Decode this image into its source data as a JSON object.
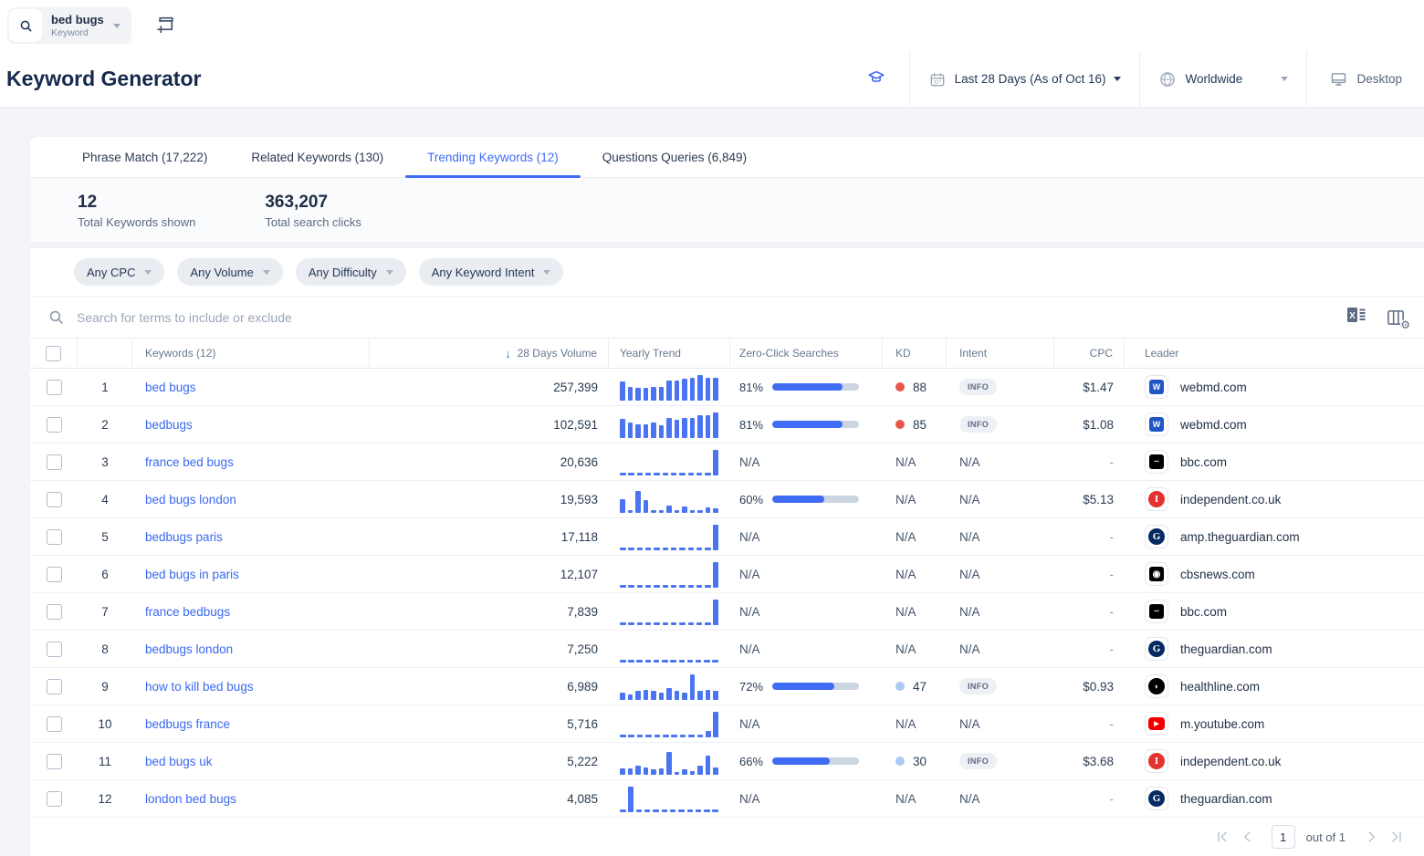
{
  "topbar": {
    "seed_keyword": "bed bugs",
    "seed_type": "Keyword"
  },
  "header": {
    "title": "Keyword Generator",
    "date_range": "Last 28 Days (As of Oct 16)",
    "location": "Worldwide",
    "device": "Desktop"
  },
  "tabs": [
    {
      "label": "Phrase Match (17,222)",
      "active": false
    },
    {
      "label": "Related Keywords (130)",
      "active": false
    },
    {
      "label": "Trending Keywords (12)",
      "active": true
    },
    {
      "label": "Questions Queries (6,849)",
      "active": false
    }
  ],
  "stats": {
    "keywords": {
      "value": "12",
      "label": "Total Keywords shown"
    },
    "clicks": {
      "value": "363,207",
      "label": "Total search clicks"
    }
  },
  "filters": [
    "Any CPC",
    "Any Volume",
    "Any Difficulty",
    "Any Keyword Intent"
  ],
  "search": {
    "placeholder": "Search for terms to include or exclude"
  },
  "table": {
    "headers": {
      "keywords": "Keywords (12)",
      "volume": "28 Days Volume",
      "trend": "Yearly Trend",
      "zero_click": "Zero-Click Searches",
      "kd": "KD",
      "intent": "Intent",
      "cpc": "CPC",
      "leader": "Leader"
    },
    "rows": [
      {
        "index": "1",
        "keyword": "bed bugs",
        "volume": "257,399",
        "trend": [
          0.75,
          0.55,
          0.5,
          0.5,
          0.55,
          0.55,
          0.8,
          0.8,
          0.85,
          0.9,
          1.0,
          0.9,
          0.9
        ],
        "zero_click": "81%",
        "zero_click_pct": 81,
        "kd": "88",
        "kd_level": "hard",
        "intent": "INFO",
        "cpc": "$1.47",
        "leader": {
          "domain": "webmd.com",
          "icon": "webmd"
        }
      },
      {
        "index": "2",
        "keyword": "bedbugs",
        "volume": "102,591",
        "trend": [
          0.75,
          0.6,
          0.55,
          0.55,
          0.6,
          0.5,
          0.8,
          0.7,
          0.8,
          0.8,
          0.9,
          0.9,
          1.0
        ],
        "zero_click": "81%",
        "zero_click_pct": 81,
        "kd": "85",
        "kd_level": "hard",
        "intent": "INFO",
        "cpc": "$1.08",
        "leader": {
          "domain": "webmd.com",
          "icon": "webmd"
        }
      },
      {
        "index": "3",
        "keyword": "france bed bugs",
        "volume": "20,636",
        "trend": [
          0,
          0,
          0,
          0,
          0,
          0,
          0,
          0,
          0,
          0,
          0,
          1.0
        ],
        "zero_click": "N/A",
        "zero_click_pct": null,
        "kd": "N/A",
        "kd_level": null,
        "intent": "N/A",
        "cpc": "-",
        "leader": {
          "domain": "bbc.com",
          "icon": "bbc"
        }
      },
      {
        "index": "4",
        "keyword": "bed bugs london",
        "volume": "19,593",
        "trend": [
          0.55,
          0.1,
          0.85,
          0.5,
          0.1,
          0.1,
          0.3,
          0.1,
          0.25,
          0.1,
          0.1,
          0.22,
          0.18
        ],
        "zero_click": "60%",
        "zero_click_pct": 60,
        "kd": "N/A",
        "kd_level": null,
        "intent": "N/A",
        "cpc": "$5.13",
        "leader": {
          "domain": "independent.co.uk",
          "icon": "independent"
        }
      },
      {
        "index": "5",
        "keyword": "bedbugs paris",
        "volume": "17,118",
        "trend": [
          0,
          0,
          0,
          0,
          0,
          0,
          0,
          0,
          0,
          0,
          0,
          1.0
        ],
        "zero_click": "N/A",
        "zero_click_pct": null,
        "kd": "N/A",
        "kd_level": null,
        "intent": "N/A",
        "cpc": "-",
        "leader": {
          "domain": "amp.theguardian.com",
          "icon": "guardian"
        }
      },
      {
        "index": "6",
        "keyword": "bed bugs in paris",
        "volume": "12,107",
        "trend": [
          0,
          0,
          0,
          0,
          0,
          0,
          0,
          0,
          0,
          0,
          0,
          1.0
        ],
        "zero_click": "N/A",
        "zero_click_pct": null,
        "kd": "N/A",
        "kd_level": null,
        "intent": "N/A",
        "cpc": "-",
        "leader": {
          "domain": "cbsnews.com",
          "icon": "cbs"
        }
      },
      {
        "index": "7",
        "keyword": "france bedbugs",
        "volume": "7,839",
        "trend": [
          0,
          0,
          0,
          0,
          0,
          0,
          0,
          0,
          0,
          0,
          0,
          1.0
        ],
        "zero_click": "N/A",
        "zero_click_pct": null,
        "kd": "N/A",
        "kd_level": null,
        "intent": "N/A",
        "cpc": "-",
        "leader": {
          "domain": "bbc.com",
          "icon": "bbc"
        }
      },
      {
        "index": "8",
        "keyword": "bedbugs london",
        "volume": "7,250",
        "trend": [
          0,
          0,
          0,
          0,
          0,
          0,
          0,
          0,
          0,
          0,
          0,
          0
        ],
        "zero_click": "N/A",
        "zero_click_pct": null,
        "kd": "N/A",
        "kd_level": null,
        "intent": "N/A",
        "cpc": "-",
        "leader": {
          "domain": "theguardian.com",
          "icon": "guardian"
        }
      },
      {
        "index": "9",
        "keyword": "how to kill bed bugs",
        "volume": "6,989",
        "trend": [
          0.3,
          0.2,
          0.35,
          0.4,
          0.35,
          0.3,
          0.45,
          0.35,
          0.3,
          1.0,
          0.35,
          0.4,
          0.35
        ],
        "zero_click": "72%",
        "zero_click_pct": 72,
        "kd": "47",
        "kd_level": "easy",
        "intent": "INFO",
        "cpc": "$0.93",
        "leader": {
          "domain": "healthline.com",
          "icon": "healthline"
        }
      },
      {
        "index": "10",
        "keyword": "bedbugs france",
        "volume": "5,716",
        "trend": [
          0,
          0,
          0,
          0,
          0,
          0,
          0,
          0,
          0,
          0,
          0.25,
          1.0
        ],
        "zero_click": "N/A",
        "zero_click_pct": null,
        "kd": "N/A",
        "kd_level": null,
        "intent": "N/A",
        "cpc": "-",
        "leader": {
          "domain": "m.youtube.com",
          "icon": "youtube"
        }
      },
      {
        "index": "11",
        "keyword": "bed bugs uk",
        "volume": "5,222",
        "trend": [
          0.25,
          0.25,
          0.35,
          0.3,
          0.2,
          0.25,
          0.9,
          0.08,
          0.2,
          0.15,
          0.35,
          0.75,
          0.3
        ],
        "zero_click": "66%",
        "zero_click_pct": 66,
        "kd": "30",
        "kd_level": "easy",
        "intent": "INFO",
        "cpc": "$3.68",
        "leader": {
          "domain": "independent.co.uk",
          "icon": "independent"
        }
      },
      {
        "index": "12",
        "keyword": "london bed bugs",
        "volume": "4,085",
        "trend": [
          0,
          1.0,
          0,
          0,
          0,
          0,
          0,
          0,
          0,
          0,
          0,
          0
        ],
        "zero_click": "N/A",
        "zero_click_pct": null,
        "kd": "N/A",
        "kd_level": null,
        "intent": "N/A",
        "cpc": "-",
        "leader": {
          "domain": "theguardian.com",
          "icon": "guardian"
        }
      }
    ]
  },
  "pagination": {
    "page": "1",
    "label": "out of 1"
  },
  "colors": {
    "accent": "#3f6bf5",
    "kd_hard": "#e8564e",
    "kd_easy": "#abc9f5"
  },
  "favicons": {
    "webmd": {
      "bg": "#2356c5",
      "fg": "#ffffff",
      "glyph": "W",
      "shape": "square",
      "serif": false,
      "fs": 9
    },
    "bbc": {
      "bg": "#000000",
      "fg": "#ffffff",
      "glyph": "▪▪▪",
      "shape": "square",
      "serif": false,
      "fs": 5
    },
    "independent": {
      "bg": "#e4322e",
      "fg": "#ffffff",
      "glyph": "I",
      "shape": "circle",
      "serif": true,
      "fs": 11
    },
    "guardian": {
      "bg": "#052962",
      "fg": "#ffffff",
      "glyph": "G",
      "shape": "circle",
      "serif": true,
      "fs": 11
    },
    "cbs": {
      "bg": "#000000",
      "fg": "#ffffff",
      "glyph": "◉",
      "shape": "square",
      "serif": false,
      "fs": 10
    },
    "healthline": {
      "bg": "#000000",
      "fg": "#ffffff",
      "glyph": "◗",
      "shape": "circle",
      "serif": false,
      "fs": 9
    },
    "youtube": {
      "bg": "#f20000",
      "fg": "#ffffff",
      "glyph": "▶",
      "shape": "rounded",
      "serif": false,
      "fs": 7
    }
  }
}
